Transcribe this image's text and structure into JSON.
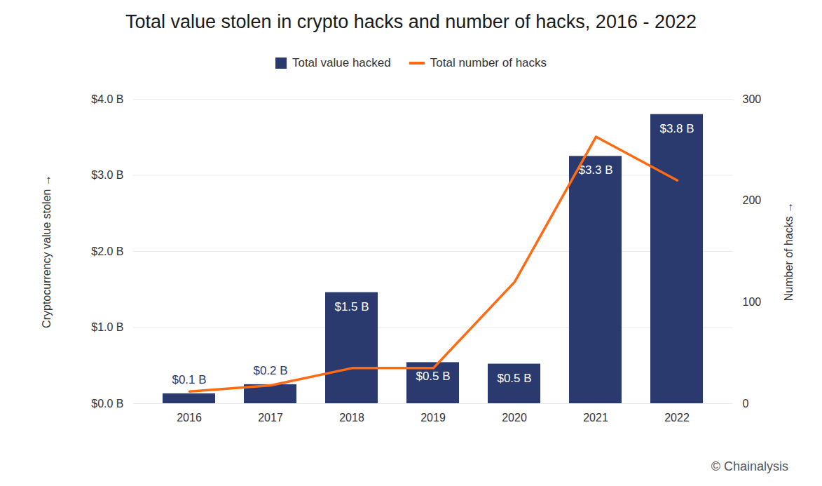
{
  "chart_data": {
    "type": "bar",
    "title": "Total value stolen in crypto hacks and number of hacks, 2016 - 2022",
    "caption": "© Chainalysis",
    "y_label": "Cryptocurrency value stolen",
    "y2_label": "Number of hacks",
    "categories": [
      "2016",
      "2017",
      "2018",
      "2019",
      "2020",
      "2021",
      "2022"
    ],
    "series": [
      {
        "name": "Total value hacked",
        "type": "bar",
        "color": "#2b3a6e",
        "values": [
          0.13,
          0.25,
          1.46,
          0.54,
          0.52,
          3.25,
          3.8
        ],
        "value_labels": [
          "$0.1 B",
          "$0.2 B",
          "$1.5 B",
          "$0.5 B",
          "$0.5 B",
          "$3.3 B",
          "$3.8 B"
        ]
      },
      {
        "name": "Total number of hacks",
        "type": "line",
        "color": "#ff6a13",
        "axis": "y2",
        "values": [
          12,
          18,
          35,
          35,
          120,
          263,
          220
        ]
      }
    ],
    "ylim": [
      0,
      4
    ],
    "yticks": [
      {
        "value": 0,
        "label": "$0.0 B"
      },
      {
        "value": 1,
        "label": "$1.0 B"
      },
      {
        "value": 2,
        "label": "$2.0 B"
      },
      {
        "value": 3,
        "label": "$3.0 B"
      },
      {
        "value": 4,
        "label": "$4.0 B"
      }
    ],
    "y2lim": [
      0,
      300
    ],
    "y2ticks": [
      0,
      100,
      200,
      300
    ],
    "grid": true,
    "legend": "top",
    "data_labels": true
  }
}
